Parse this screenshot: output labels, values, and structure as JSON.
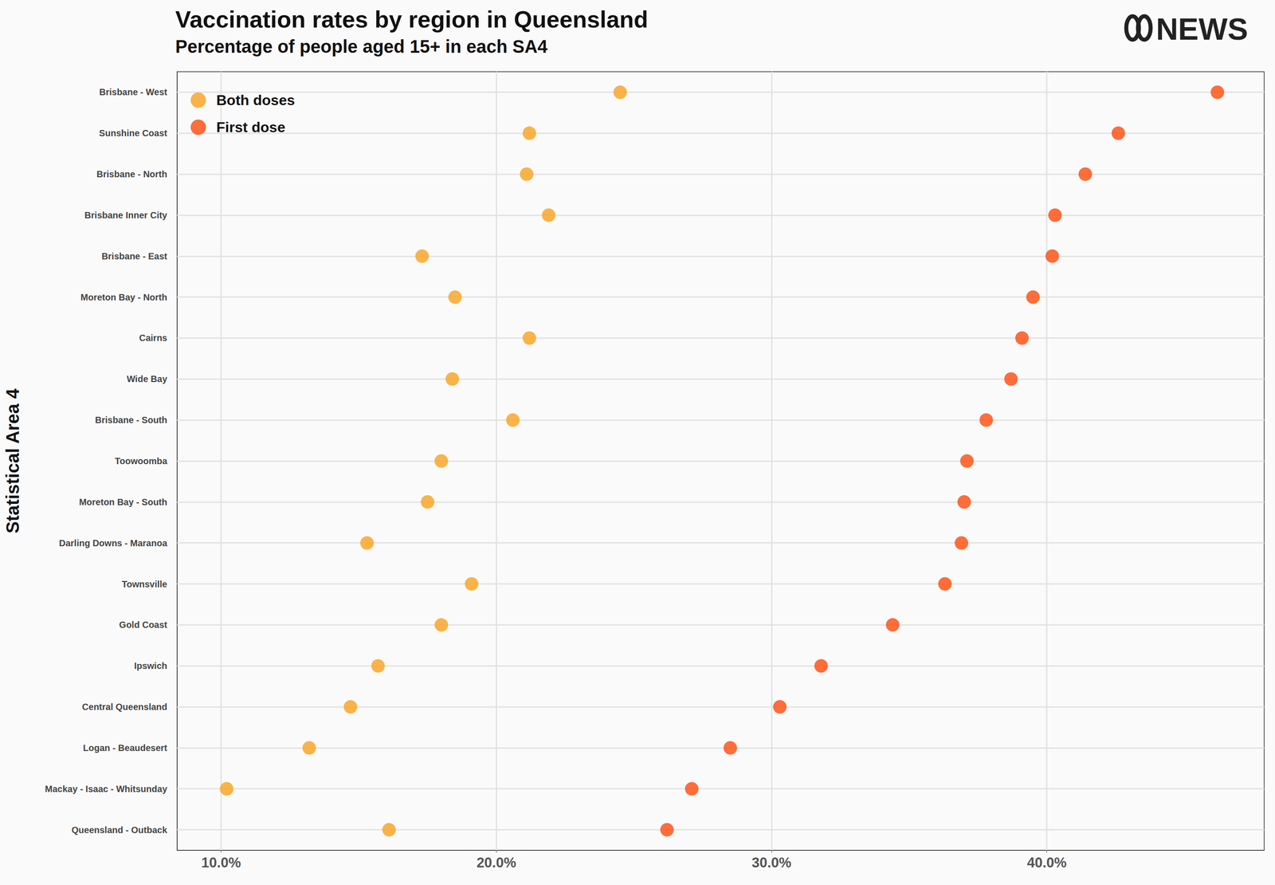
{
  "chart_data": {
    "type": "scatter",
    "title": "Vaccination rates by region in Queensland",
    "subtitle": "Percentage of people aged 15+ in each SA4",
    "logo": "NEWS",
    "y_label": "Statistical Area 4",
    "orientation": "horizontal",
    "categories": [
      "Brisbane - West",
      "Sunshine Coast",
      "Brisbane - North",
      "Brisbane Inner City",
      "Brisbane - East",
      "Moreton Bay - North",
      "Cairns",
      "Wide Bay",
      "Brisbane - South",
      "Toowoomba",
      "Moreton Bay - South",
      "Darling Downs - Maranoa",
      "Townsville",
      "Gold Coast",
      "Ipswich",
      "Central Queensland",
      "Logan - Beaudesert",
      "Mackay - Isaac - Whitsunday",
      "Queensland - Outback"
    ],
    "series": [
      {
        "name": "Both doses",
        "color": "#F9A11B",
        "marker": "circle",
        "values": [
          24.5,
          21.2,
          21.1,
          21.9,
          17.3,
          18.5,
          21.2,
          18.4,
          20.6,
          18.0,
          17.5,
          15.3,
          19.1,
          18.0,
          15.7,
          14.7,
          13.2,
          10.2,
          16.1
        ]
      },
      {
        "name": "First dose",
        "color": "#FF4A0A",
        "marker": "circle",
        "values": [
          46.2,
          42.6,
          41.4,
          40.3,
          40.2,
          39.5,
          39.1,
          38.7,
          37.8,
          37.1,
          37.0,
          36.9,
          36.3,
          34.4,
          31.8,
          30.3,
          28.5,
          27.1,
          26.2
        ]
      }
    ],
    "xlim": [
      8.4,
      47.9
    ],
    "xticks": [
      {
        "value": 10,
        "label": "10.0%"
      },
      {
        "value": 20,
        "label": "20.0%"
      },
      {
        "value": 30,
        "label": "30.0%"
      },
      {
        "value": 40,
        "label": "40.0%"
      }
    ],
    "grid": true,
    "legend": "upper left"
  }
}
